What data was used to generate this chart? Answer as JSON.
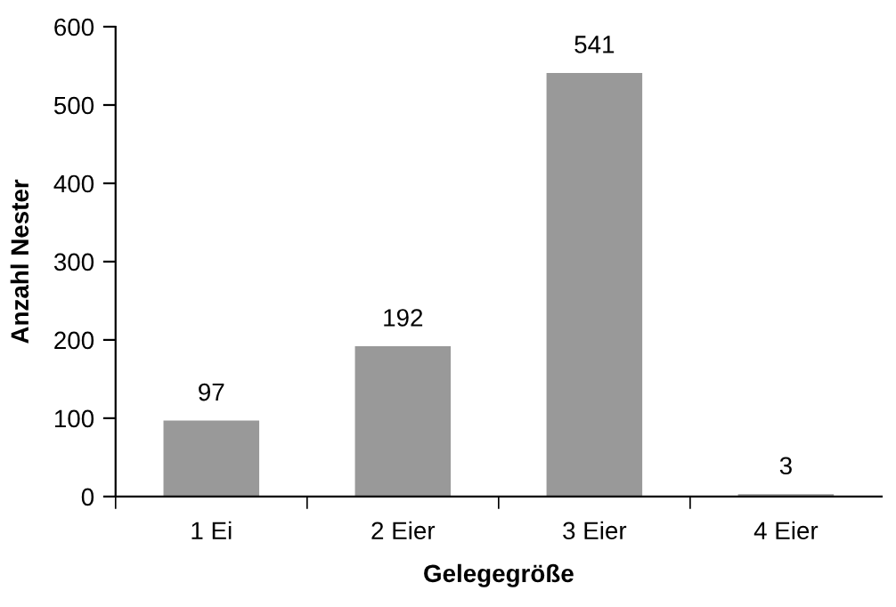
{
  "chart_data": {
    "type": "bar",
    "xlabel": "Gelegegröße",
    "ylabel": "Anzahl Nester",
    "categories": [
      "1 Ei",
      "2 Eier",
      "3 Eier",
      "4 Eier"
    ],
    "values": [
      97,
      192,
      541,
      3
    ],
    "color": "#999999",
    "ylim": [
      0,
      600
    ],
    "yticks": [
      0,
      100,
      200,
      300,
      400,
      500,
      600
    ],
    "data_labels": true,
    "grid": false,
    "legend": false
  }
}
